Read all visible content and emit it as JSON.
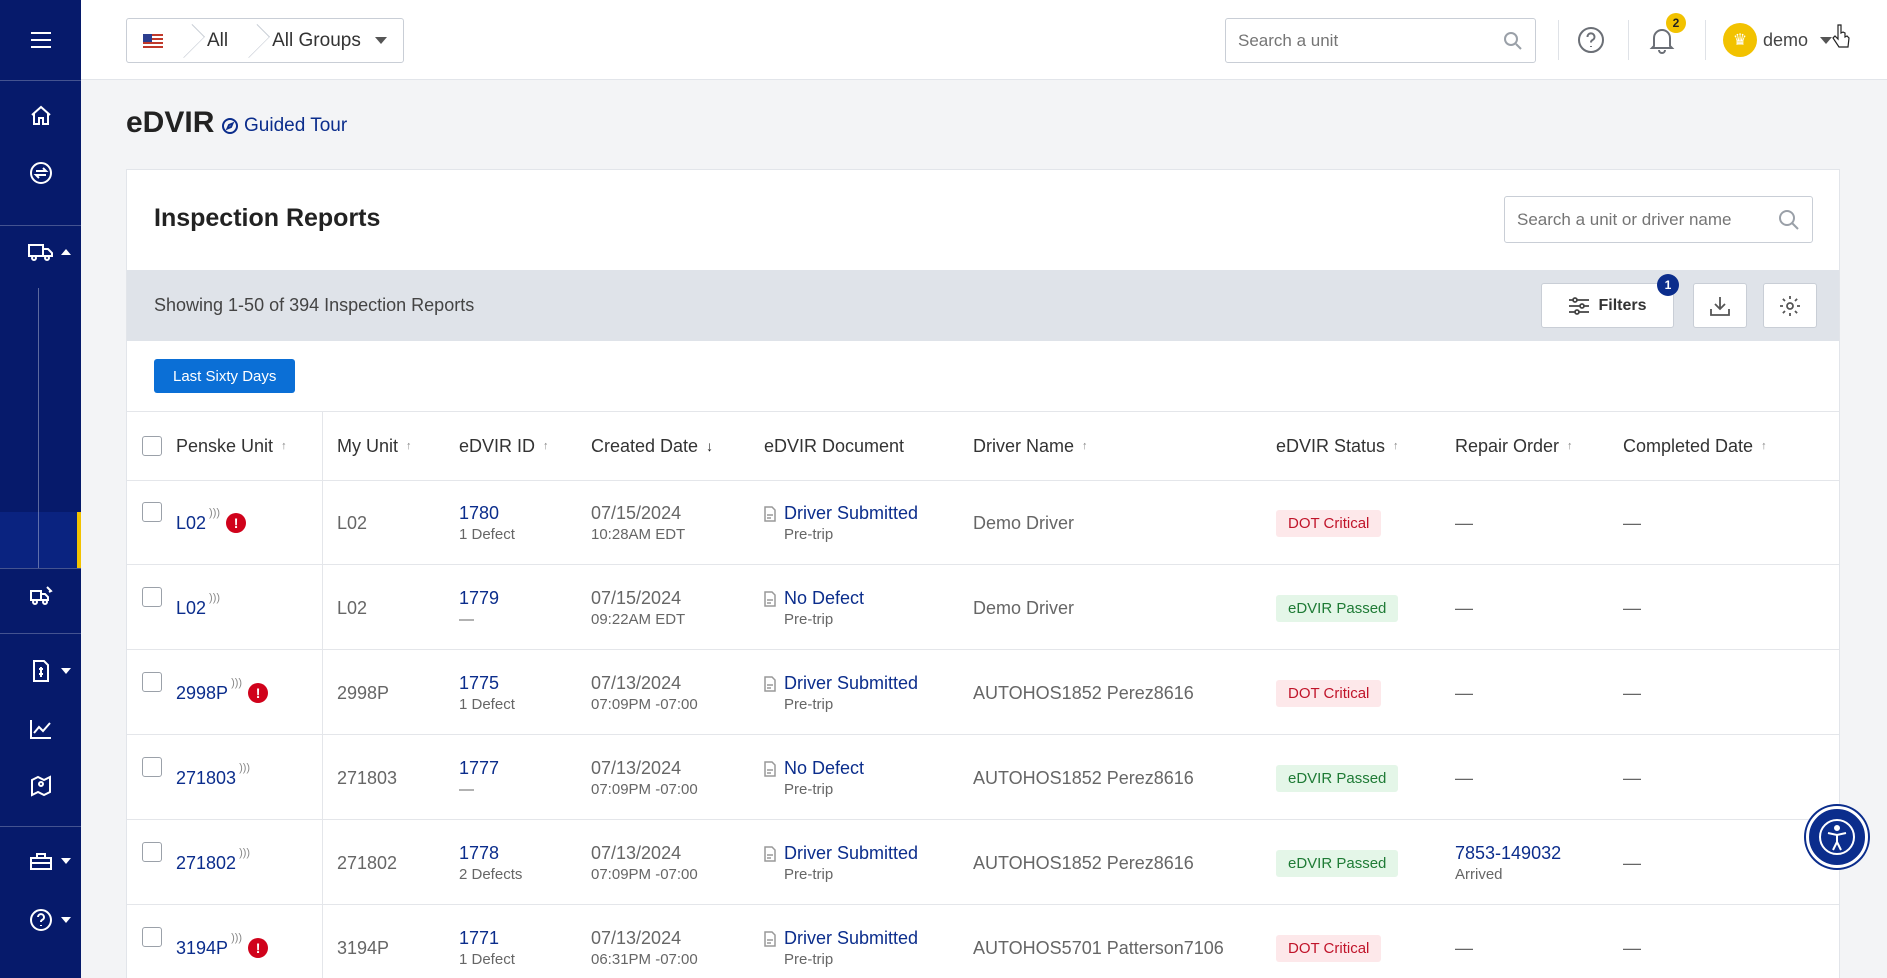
{
  "topbar": {
    "breadcrumb": {
      "scope": "All",
      "group": "All Groups"
    },
    "search_placeholder": "Search a unit",
    "notification_count": "2",
    "user_name": "demo"
  },
  "page": {
    "title": "eDVIR",
    "guided_tour": "Guided Tour"
  },
  "card": {
    "title": "Inspection Reports",
    "search_placeholder": "Search a unit or driver name",
    "showing": "Showing 1-50 of 394 Inspection Reports",
    "filters_label": "Filters",
    "filters_count": "1",
    "date_range": "Last Sixty Days"
  },
  "columns": [
    "Penske Unit",
    "My Unit",
    "eDVIR ID",
    "Created Date",
    "eDVIR Document",
    "Driver Name",
    "eDVIR Status",
    "Repair Order",
    "Completed Date"
  ],
  "rows": [
    {
      "penske_unit": "L02",
      "alert": true,
      "my_unit": "L02",
      "edvir_id": "1780",
      "defects": "1 Defect",
      "date": "07/15/2024",
      "time": "10:28AM EDT",
      "doc": "Driver Submitted",
      "trip": "Pre-trip",
      "driver": "Demo Driver",
      "status": "DOT Critical",
      "status_type": "crit",
      "repair_order": "—",
      "repair_sub": "",
      "completed": "—"
    },
    {
      "penske_unit": "L02",
      "alert": false,
      "my_unit": "L02",
      "edvir_id": "1779",
      "defects": "—",
      "date": "07/15/2024",
      "time": "09:22AM EDT",
      "doc": "No Defect",
      "trip": "Pre-trip",
      "driver": "Demo Driver",
      "status": "eDVIR Passed",
      "status_type": "pass",
      "repair_order": "—",
      "repair_sub": "",
      "completed": "—"
    },
    {
      "penske_unit": "2998P",
      "alert": true,
      "my_unit": "2998P",
      "edvir_id": "1775",
      "defects": "1 Defect",
      "date": "07/13/2024",
      "time": "07:09PM -07:00",
      "doc": "Driver Submitted",
      "trip": "Pre-trip",
      "driver": "AUTOHOS1852 Perez8616",
      "status": "DOT Critical",
      "status_type": "crit",
      "repair_order": "—",
      "repair_sub": "",
      "completed": "—"
    },
    {
      "penske_unit": "271803",
      "alert": false,
      "my_unit": "271803",
      "edvir_id": "1777",
      "defects": "—",
      "date": "07/13/2024",
      "time": "07:09PM -07:00",
      "doc": "No Defect",
      "trip": "Pre-trip",
      "driver": "AUTOHOS1852 Perez8616",
      "status": "eDVIR Passed",
      "status_type": "pass",
      "repair_order": "—",
      "repair_sub": "",
      "completed": "—"
    },
    {
      "penske_unit": "271802",
      "alert": false,
      "my_unit": "271802",
      "edvir_id": "1778",
      "defects": "2 Defects",
      "date": "07/13/2024",
      "time": "07:09PM -07:00",
      "doc": "Driver Submitted",
      "trip": "Pre-trip",
      "driver": "AUTOHOS1852 Perez8616",
      "status": "eDVIR Passed",
      "status_type": "pass",
      "repair_order": "7853-149032",
      "repair_sub": "Arrived",
      "completed": "—"
    },
    {
      "penske_unit": "3194P",
      "alert": true,
      "my_unit": "3194P",
      "edvir_id": "1771",
      "defects": "1 Defect",
      "date": "07/13/2024",
      "time": "06:31PM -07:00",
      "doc": "Driver Submitted",
      "trip": "Pre-trip",
      "driver": "AUTOHOS5701 Patterson7106",
      "status": "DOT Critical",
      "status_type": "crit",
      "repair_order": "—",
      "repair_sub": "",
      "completed": "—"
    }
  ]
}
